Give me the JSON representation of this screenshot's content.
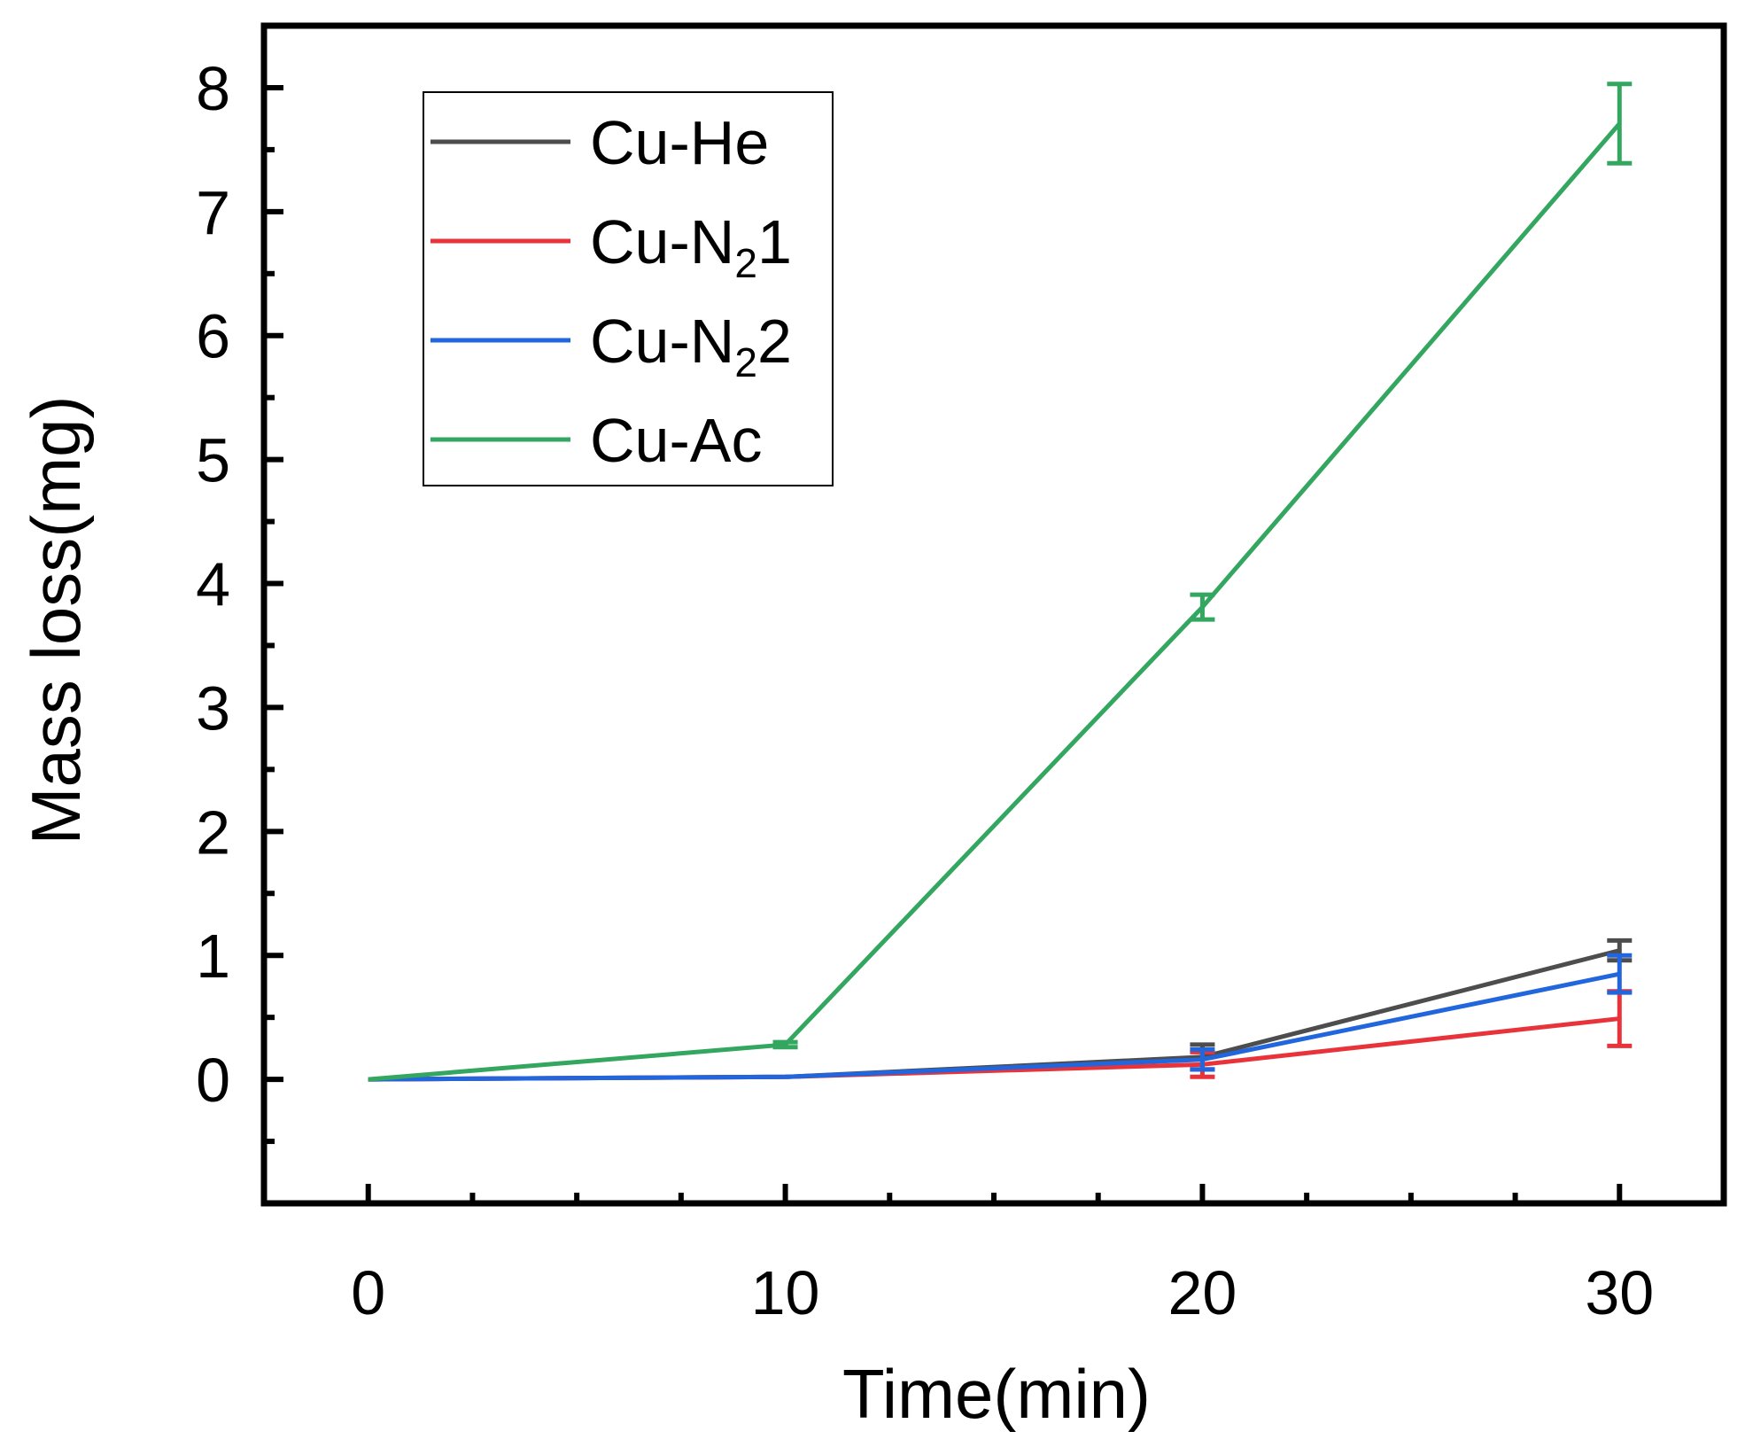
{
  "chart_data": {
    "type": "line",
    "title": "",
    "xlabel": "Time(min)",
    "ylabel": "Mass loss(mg)",
    "xlim": [
      -2.5,
      32.5
    ],
    "ylim": [
      -1,
      8.5
    ],
    "xticks": [
      0,
      10,
      20,
      30
    ],
    "yticks": [
      0,
      1,
      2,
      3,
      4,
      5,
      6,
      7,
      8
    ],
    "x_minor_step": 2.5,
    "y_minor_step": 0.5,
    "grid": false,
    "legend_position": "top-left",
    "series": [
      {
        "name": "Cu-He",
        "legend": {
          "base": "Cu-He",
          "sub": "",
          "suffix": ""
        },
        "color": "#4d4d4d",
        "x": [
          0,
          10,
          20,
          30
        ],
        "values": [
          0,
          0.02,
          0.18,
          1.04
        ],
        "errors": [
          0,
          0,
          0.1,
          0.08
        ]
      },
      {
        "name": "Cu-N21",
        "legend": {
          "base": "Cu-N",
          "sub": "2",
          "suffix": "1"
        },
        "color": "#e8333a",
        "x": [
          0,
          10,
          20,
          30
        ],
        "values": [
          0,
          0.02,
          0.12,
          0.49
        ],
        "errors": [
          0,
          0,
          0.1,
          0.22
        ]
      },
      {
        "name": "Cu-N22",
        "legend": {
          "base": "Cu-N",
          "sub": "2",
          "suffix": "2"
        },
        "color": "#2266dd",
        "x": [
          0,
          10,
          20,
          30
        ],
        "values": [
          0,
          0.02,
          0.16,
          0.85
        ],
        "errors": [
          0,
          0,
          0.08,
          0.15
        ]
      },
      {
        "name": "Cu-Ac",
        "legend": {
          "base": "Cu-Ac",
          "sub": "",
          "suffix": ""
        },
        "color": "#33a660",
        "x": [
          0,
          10,
          20,
          30
        ],
        "values": [
          0,
          0.28,
          3.81,
          7.71
        ],
        "errors": [
          0,
          0.02,
          0.1,
          0.32
        ]
      }
    ]
  }
}
